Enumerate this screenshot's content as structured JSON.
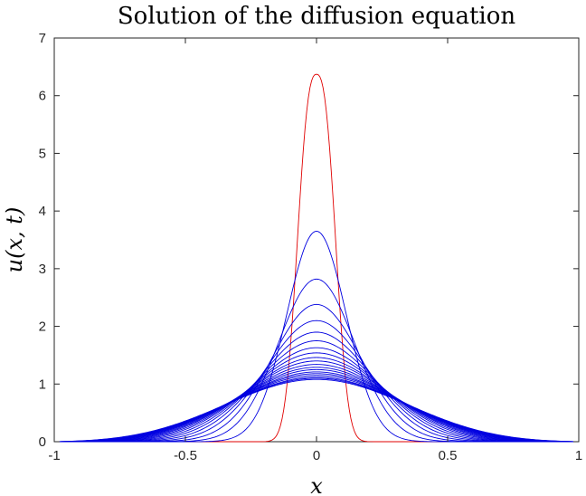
{
  "chart_data": {
    "type": "line",
    "title": "Solution of the diffusion equation",
    "xlabel": "x",
    "ylabel": "u(x, t)",
    "xlim": [
      -1,
      1
    ],
    "ylim": [
      0,
      7
    ],
    "x_ticks": [
      -1,
      -0.5,
      0,
      0.5,
      1
    ],
    "x_tick_labels": [
      "-1",
      "-0.5",
      "0",
      "0.5",
      "1"
    ],
    "y_ticks": [
      0,
      1,
      2,
      3,
      4,
      5,
      6,
      7
    ],
    "y_tick_labels": [
      "0",
      "1",
      "2",
      "3",
      "4",
      "5",
      "6",
      "7"
    ],
    "grid": false,
    "box": true,
    "colors": {
      "initial": "#e00000",
      "evolved": "#0000e0",
      "axes": "#262626"
    },
    "series": [
      {
        "peak": 6.37,
        "halfwidth": 0.077,
        "shape": "initial",
        "color": "#e00000"
      },
      {
        "peak": 3.65,
        "halfwidth": 0.135,
        "shape": "evolved",
        "color": "#0000e0"
      },
      {
        "peak": 2.82,
        "halfwidth": 0.175,
        "shape": "evolved",
        "color": "#0000e0"
      },
      {
        "peak": 2.38,
        "halfwidth": 0.207,
        "shape": "evolved",
        "color": "#0000e0"
      },
      {
        "peak": 2.1,
        "halfwidth": 0.235,
        "shape": "evolved",
        "color": "#0000e0"
      },
      {
        "peak": 1.9,
        "halfwidth": 0.259,
        "shape": "evolved",
        "color": "#0000e0"
      },
      {
        "peak": 1.75,
        "halfwidth": 0.281,
        "shape": "evolved",
        "color": "#0000e0"
      },
      {
        "peak": 1.63,
        "halfwidth": 0.301,
        "shape": "evolved",
        "color": "#0000e0"
      },
      {
        "peak": 1.54,
        "halfwidth": 0.32,
        "shape": "evolved",
        "color": "#0000e0"
      },
      {
        "peak": 1.46,
        "halfwidth": 0.337,
        "shape": "evolved",
        "color": "#0000e0"
      },
      {
        "peak": 1.4,
        "halfwidth": 0.353,
        "shape": "evolved",
        "color": "#0000e0"
      },
      {
        "peak": 1.34,
        "halfwidth": 0.368,
        "shape": "evolved",
        "color": "#0000e0"
      },
      {
        "peak": 1.29,
        "halfwidth": 0.383,
        "shape": "evolved",
        "color": "#0000e0"
      },
      {
        "peak": 1.25,
        "halfwidth": 0.396,
        "shape": "evolved",
        "color": "#0000e0"
      },
      {
        "peak": 1.21,
        "halfwidth": 0.409,
        "shape": "evolved",
        "color": "#0000e0"
      },
      {
        "peak": 1.18,
        "halfwidth": 0.421,
        "shape": "evolved",
        "color": "#0000e0"
      },
      {
        "peak": 1.15,
        "halfwidth": 0.432,
        "shape": "evolved",
        "color": "#0000e0"
      },
      {
        "peak": 1.12,
        "halfwidth": 0.443,
        "shape": "evolved",
        "color": "#0000e0"
      },
      {
        "peak": 1.1,
        "halfwidth": 0.453,
        "shape": "evolved",
        "color": "#0000e0"
      },
      {
        "peak": 1.08,
        "halfwidth": 0.462,
        "shape": "evolved",
        "color": "#0000e0"
      }
    ]
  }
}
